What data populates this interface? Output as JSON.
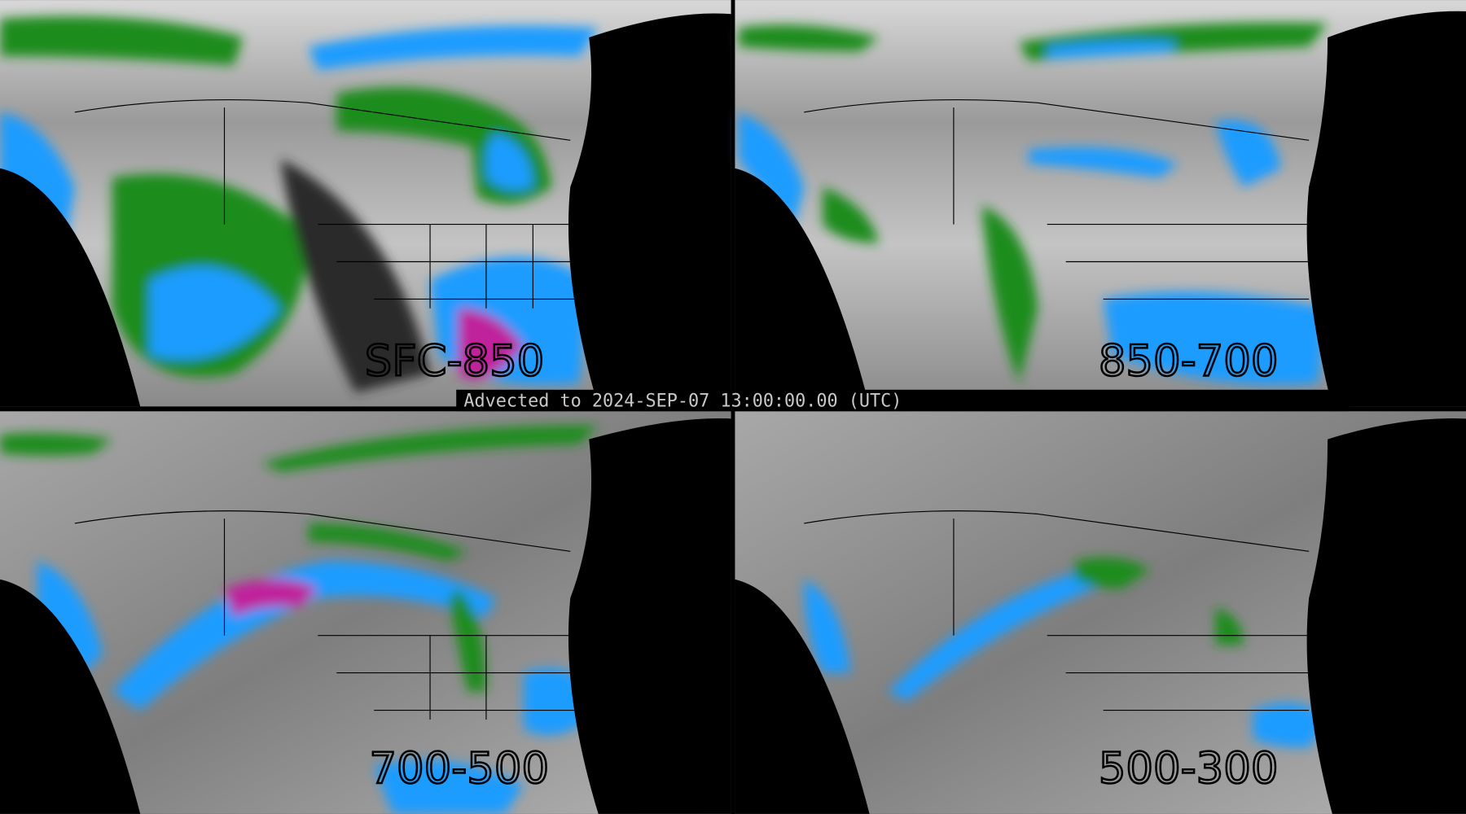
{
  "timestamp_label": "Advected to 2024-SEP-07 13:00:00.00 (UTC)",
  "panels": [
    {
      "id": "sfc-850",
      "label": "SFC-850",
      "intensity": "high"
    },
    {
      "id": "850-700",
      "label": "850-700",
      "intensity": "medium"
    },
    {
      "id": "700-500",
      "label": "700-500",
      "intensity": "medium"
    },
    {
      "id": "500-300",
      "label": "500-300",
      "intensity": "low"
    }
  ],
  "colors": {
    "background": "#000000",
    "gray_low": "#6e6e6e",
    "gray_high": "#e8e8e8",
    "green": "#1a8c1a",
    "blue": "#1a9cff",
    "magenta": "#c0209c",
    "outline": "#000000"
  }
}
